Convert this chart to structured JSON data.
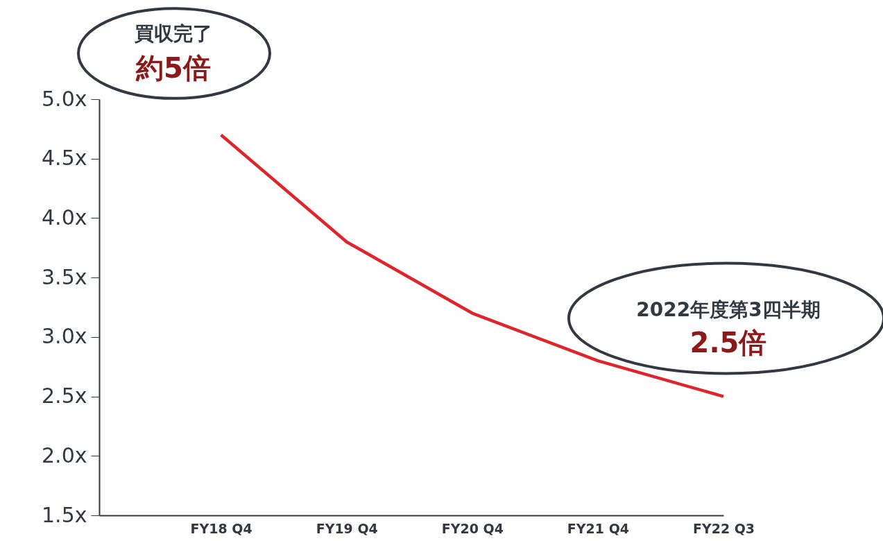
{
  "chart_data": {
    "type": "line",
    "categories": [
      "FY18 Q4",
      "FY19 Q4",
      "FY20 Q4",
      "FY21 Q4",
      "FY22 Q3"
    ],
    "series": [
      {
        "color": "#e0242b",
        "values": [
          4.7,
          3.8,
          3.2,
          2.8,
          2.5
        ]
      }
    ],
    "ylim": [
      1.5,
      5.0
    ],
    "yticks": [
      {
        "value": 1.5,
        "label": "1.5x"
      },
      {
        "value": 2.0,
        "label": "2.0x"
      },
      {
        "value": 2.5,
        "label": "2.5x"
      },
      {
        "value": 3.0,
        "label": "3.0x"
      },
      {
        "value": 3.5,
        "label": "3.5x"
      },
      {
        "value": 4.0,
        "label": "4.0x"
      },
      {
        "value": 4.5,
        "label": "4.5x"
      },
      {
        "value": 5.0,
        "label": "5.0x"
      }
    ],
    "annotations": [
      "買収完了",
      "約5倍",
      "2022年度第3四半期",
      "2.5倍"
    ],
    "grid": false,
    "legend": false,
    "marker": "none",
    "line_style": "solid"
  }
}
